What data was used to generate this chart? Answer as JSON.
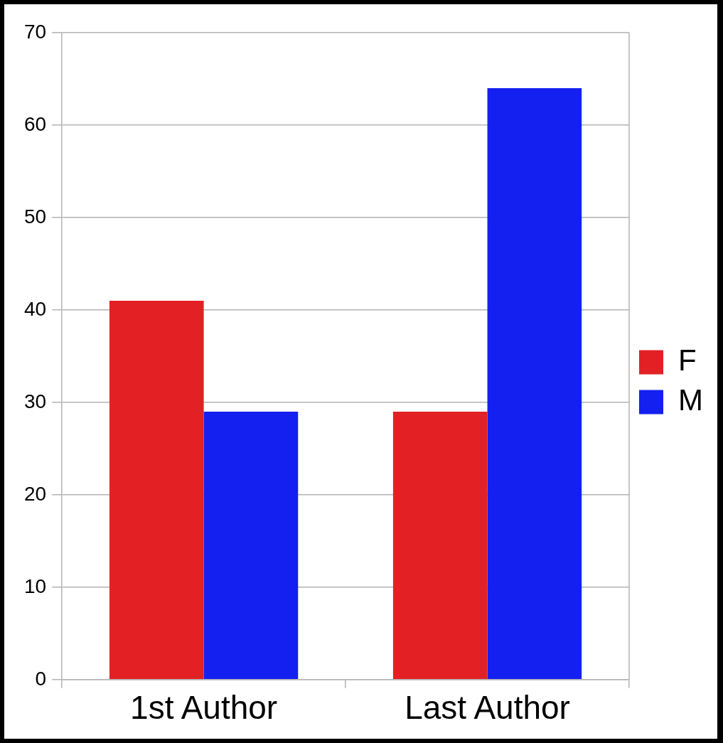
{
  "chart_data": {
    "type": "bar",
    "categories": [
      "1st Author",
      "Last Author"
    ],
    "series": [
      {
        "name": "F",
        "color": "#e32124",
        "values": [
          41,
          29
        ]
      },
      {
        "name": "M",
        "color": "#1420f0",
        "values": [
          29,
          64
        ]
      }
    ],
    "ylim": [
      0,
      70
    ],
    "yticks": [
      0,
      10,
      20,
      30,
      40,
      50,
      60,
      70
    ],
    "grid": "y",
    "legend": "right"
  }
}
